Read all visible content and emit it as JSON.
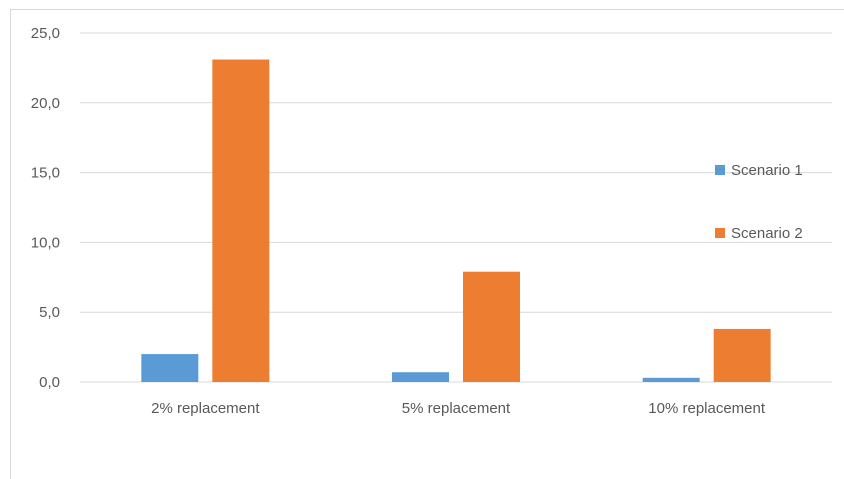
{
  "chart_data": {
    "type": "bar",
    "categories": [
      "2% replacement",
      "5% replacement",
      "10% replacement"
    ],
    "series": [
      {
        "name": "Scenario 1",
        "color": "#5b9bd5",
        "values": [
          2.0,
          0.7,
          0.3
        ]
      },
      {
        "name": "Scenario 2",
        "color": "#ed7d31",
        "values": [
          23.1,
          7.9,
          3.8
        ]
      }
    ],
    "y_ticks": [
      "0,0",
      "5,0",
      "10,0",
      "15,0",
      "20,0",
      "25,0"
    ],
    "ylim": [
      0,
      25
    ],
    "y_tick_step": 5,
    "grid": true,
    "legend_position": "right",
    "gridline_color": "#d9d9d9"
  }
}
